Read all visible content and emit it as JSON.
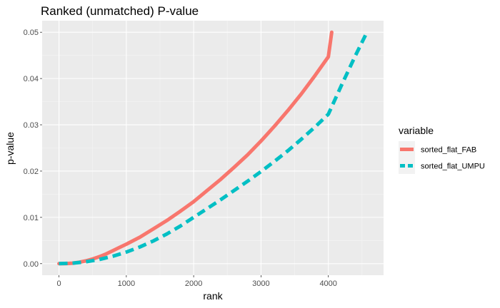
{
  "chart_data": {
    "type": "line",
    "title": "Ranked (unmatched) P-value",
    "xlabel": "rank",
    "ylabel": "p-value",
    "xlim": [
      -250,
      4820
    ],
    "ylim": [
      -0.0025,
      0.0525
    ],
    "x_ticks": [
      0,
      1000,
      2000,
      3000,
      4000
    ],
    "x_tick_labels": [
      "0",
      "1000",
      "2000",
      "3000",
      "4000"
    ],
    "y_ticks": [
      0.0,
      0.01,
      0.02,
      0.03,
      0.04,
      0.05
    ],
    "y_tick_labels": [
      "0.00",
      "0.01",
      "0.02",
      "0.03",
      "0.04",
      "0.05"
    ],
    "grid": true,
    "legend": {
      "title": "variable",
      "position": "right"
    },
    "series": [
      {
        "name": "sorted_flat_FAB",
        "color": "#F8766D",
        "dash": "solid",
        "x": [
          0,
          100,
          200,
          300,
          400,
          500,
          600,
          700,
          800,
          900,
          1000,
          1200,
          1400,
          1600,
          1800,
          2000,
          2200,
          2400,
          2600,
          2800,
          3000,
          3200,
          3400,
          3600,
          3800,
          4000,
          4050
        ],
        "y": [
          0.0,
          0.0,
          0.0001,
          0.0003,
          0.0006,
          0.001,
          0.0015,
          0.0021,
          0.0028,
          0.0035,
          0.0042,
          0.0057,
          0.0075,
          0.0093,
          0.0113,
          0.0134,
          0.0158,
          0.0182,
          0.0208,
          0.0235,
          0.0265,
          0.0297,
          0.0331,
          0.0367,
          0.0406,
          0.0447,
          0.05
        ]
      },
      {
        "name": "sorted_flat_UMPU",
        "color": "#00BFC4",
        "dash": "dashed",
        "x": [
          0,
          200,
          400,
          600,
          800,
          1000,
          1200,
          1400,
          1600,
          1800,
          2000,
          2200,
          2400,
          2600,
          2800,
          3000,
          3200,
          3400,
          3600,
          3800,
          4000,
          4200,
          4400,
          4580
        ],
        "y": [
          0.0,
          0.0001,
          0.0004,
          0.0009,
          0.0016,
          0.0025,
          0.0036,
          0.0049,
          0.0064,
          0.0081,
          0.01,
          0.0119,
          0.0138,
          0.0158,
          0.0178,
          0.0199,
          0.0221,
          0.0244,
          0.0269,
          0.0295,
          0.0323,
          0.0387,
          0.0449,
          0.0502
        ]
      }
    ]
  }
}
